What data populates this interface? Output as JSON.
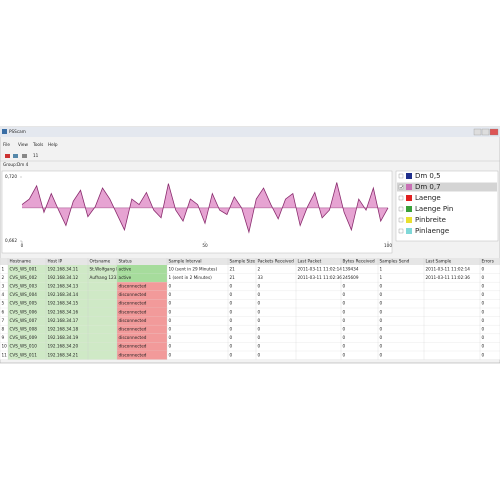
{
  "window": {
    "title": "PSScam"
  },
  "menu": [
    "File",
    "View",
    "Tools",
    "Help"
  ],
  "toolbar": {
    "counter": "11"
  },
  "group_bar": {
    "label": "Group:",
    "value": "Dm 4"
  },
  "chart_data": {
    "type": "line",
    "x": [
      0,
      2,
      4,
      6,
      8,
      10,
      12,
      14,
      16,
      18,
      20,
      22,
      24,
      26,
      28,
      30,
      32,
      34,
      36,
      38,
      40,
      42,
      44,
      46,
      48,
      50,
      52,
      54,
      56,
      58,
      60,
      62,
      64,
      66,
      68,
      70,
      72,
      74,
      76,
      78,
      80,
      82,
      84,
      86,
      88,
      90,
      92,
      94,
      96,
      98,
      100
    ],
    "series": [
      {
        "color": "#8a2c6e",
        "fill": "#e6a3d2",
        "values": [
          0.695,
          0.7,
          0.712,
          0.688,
          0.705,
          0.69,
          0.676,
          0.698,
          0.708,
          0.684,
          0.693,
          0.71,
          0.7,
          0.686,
          0.672,
          0.7,
          0.695,
          0.706,
          0.69,
          0.683,
          0.714,
          0.69,
          0.68,
          0.7,
          0.695,
          0.678,
          0.705,
          0.69,
          0.686,
          0.702,
          0.692,
          0.67,
          0.7,
          0.71,
          0.695,
          0.682,
          0.7,
          0.705,
          0.676,
          0.693,
          0.706,
          0.683,
          0.69,
          0.715,
          0.688,
          0.672,
          0.7,
          0.69,
          0.71,
          0.68,
          0.692
        ]
      }
    ],
    "fill_baseline": 0.692,
    "xlim": [
      0,
      100
    ],
    "ylim": [
      0.662,
      0.72
    ],
    "xticks": [
      0,
      50,
      100
    ],
    "yticks": [
      {
        "value": 0.662,
        "label": "0,662"
      },
      {
        "value": 0.72,
        "label": "0,720"
      }
    ],
    "legend": [
      {
        "name": "Dm 0,5",
        "color": "#1f2f8c",
        "checked": false
      },
      {
        "name": "Dm 0,7",
        "color": "#c86fb4",
        "checked": true
      },
      {
        "name": "Laenge",
        "color": "#e02020",
        "checked": false
      },
      {
        "name": "Laenge Pin",
        "color": "#3aa03a",
        "checked": false
      },
      {
        "name": "Pinbreite",
        "color": "#e8e030",
        "checked": false
      },
      {
        "name": "Pinlaenge",
        "color": "#7fd8d8",
        "checked": false
      }
    ]
  },
  "table": {
    "columns": [
      "Hostname",
      "Host IP",
      "Ortsname",
      "Status",
      "Sample Interval",
      "Sample Size",
      "Packets Received",
      "Last Packet",
      "Bytes Received",
      "Samples Send",
      "Last Sample",
      "Errors"
    ],
    "column_colors": [
      null,
      "#cfe9c6",
      "#cfe9c6",
      "#cfe9c6",
      null,
      null,
      null,
      null,
      null,
      null,
      null,
      null,
      null
    ],
    "status_colors": {
      "active": "#a6dc9c",
      "disconnected": "#f29a9a"
    },
    "rows": [
      [
        "1",
        "CVS_WS_001",
        "192.168.34.11",
        "St.Wolfgang I",
        "active",
        "10 (sent in 29 Minutes)",
        "21",
        "2",
        "2011-03-11 11:02:14",
        "139434",
        "1",
        "2011-03-11 11:02:14",
        "0"
      ],
      [
        "2",
        "CVS_WS_002",
        "192.168.34.12",
        "Aufhang 12323",
        "active",
        "1 (sent in 2 Minutes)",
        "21",
        "33",
        "2011-03-11 11:02:36",
        "245609",
        "1",
        "2011-03-11 11:02:36",
        "0"
      ],
      [
        "3",
        "CVS_WS_003",
        "192.168.34.13",
        null,
        "disconnected",
        "0",
        "0",
        "0",
        null,
        "0",
        "0",
        null,
        "0"
      ],
      [
        "4",
        "CVS_WS_004",
        "192.168.34.14",
        null,
        "disconnected",
        "0",
        "0",
        "0",
        null,
        "0",
        "0",
        null,
        "0"
      ],
      [
        "5",
        "CVS_WS_005",
        "192.168.34.15",
        null,
        "disconnected",
        "0",
        "0",
        "0",
        null,
        "0",
        "0",
        null,
        "0"
      ],
      [
        "6",
        "CVS_WS_006",
        "192.168.34.16",
        null,
        "disconnected",
        "0",
        "0",
        "0",
        null,
        "0",
        "0",
        null,
        "0"
      ],
      [
        "7",
        "CVS_WS_007",
        "192.168.34.17",
        null,
        "disconnected",
        "0",
        "0",
        "0",
        null,
        "0",
        "0",
        null,
        "0"
      ],
      [
        "8",
        "CVS_WS_008",
        "192.168.34.18",
        null,
        "disconnected",
        "0",
        "0",
        "0",
        null,
        "0",
        "0",
        null,
        "0"
      ],
      [
        "9",
        "CVS_WS_009",
        "192.168.34.19",
        null,
        "disconnected",
        "0",
        "0",
        "0",
        null,
        "0",
        "0",
        null,
        "0"
      ],
      [
        "10",
        "CVS_WS_010",
        "192.168.34.20",
        null,
        "disconnected",
        "0",
        "0",
        "0",
        null,
        "0",
        "0",
        null,
        "0"
      ],
      [
        "11",
        "CVS_WS_011",
        "192.168.34.21",
        null,
        "disconnected",
        "0",
        "0",
        "0",
        null,
        "0",
        "0",
        null,
        "0"
      ]
    ]
  }
}
